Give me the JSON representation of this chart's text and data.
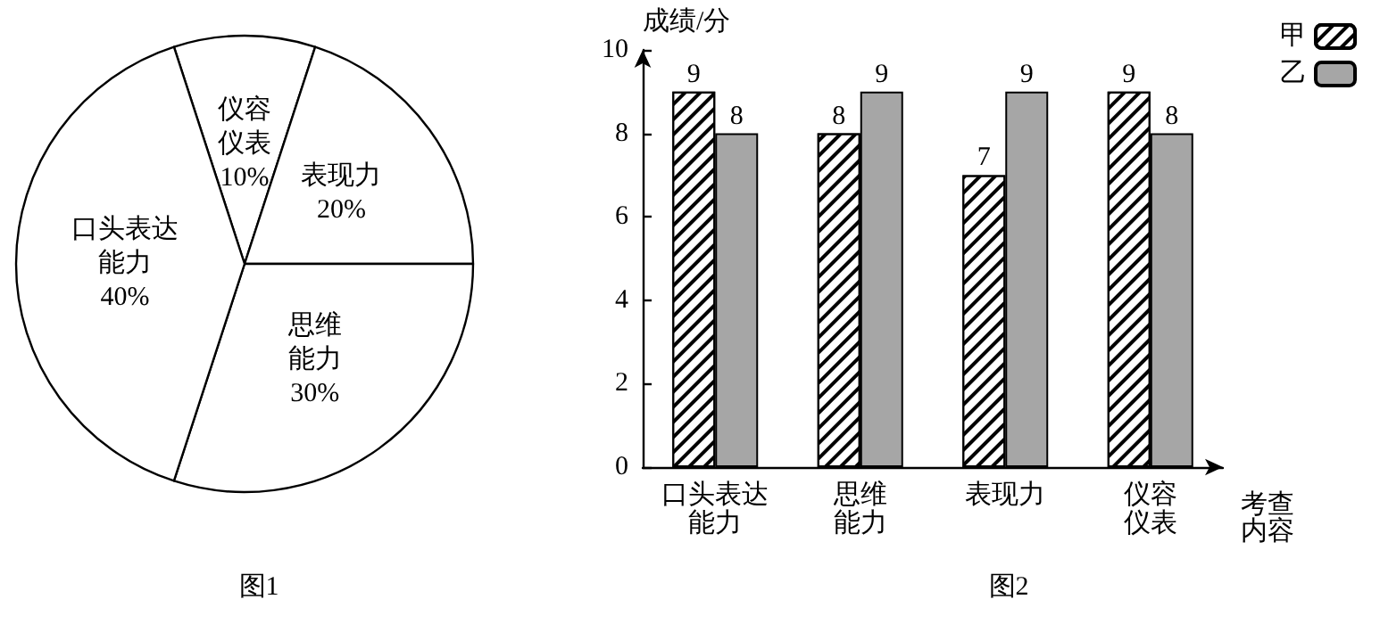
{
  "chart_data": [
    {
      "type": "pie",
      "title": "图1",
      "categories": [
        "仪容仪表",
        "表现力",
        "思维能力",
        "口头表达能力"
      ],
      "values": [
        10,
        20,
        30,
        40
      ],
      "value_labels": [
        "10%",
        "20%",
        "30%",
        "40%"
      ],
      "colors": [
        "#ffffff",
        "#ffffff",
        "#ffffff",
        "#ffffff"
      ]
    },
    {
      "type": "bar",
      "title": "图2",
      "xlabel": "考查内容",
      "ylabel": "成绩/分",
      "categories": [
        "口头表达能力",
        "思维能力",
        "表现力",
        "仪容仪表"
      ],
      "series": [
        {
          "name": "甲",
          "color": "#ffffff",
          "values": [
            9,
            8,
            7,
            9
          ]
        },
        {
          "name": "乙",
          "color": "#a6a6a6",
          "values": [
            8,
            9,
            9,
            8
          ]
        }
      ],
      "ylim": [
        0,
        10
      ],
      "yticks": [
        0,
        2,
        4,
        6,
        8,
        10
      ],
      "data_labels": true,
      "legend": "top right"
    }
  ]
}
